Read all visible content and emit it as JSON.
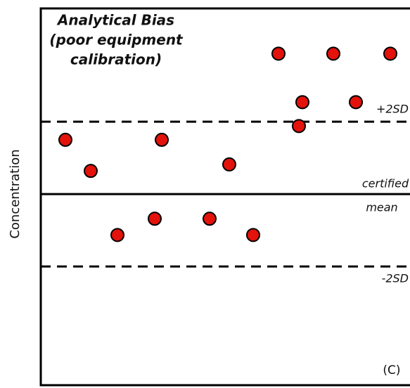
{
  "chart_data": {
    "type": "scatter",
    "title_lines": [
      "Analytical Bias",
      "(poor equipment",
      "calibration)"
    ],
    "y_label": "Concentration",
    "panel_label": "(C)",
    "x": [
      3.5,
      7.1,
      10.9,
      16.2,
      17.2,
      24.0,
      26.8,
      30.2,
      33.8,
      36.7,
      37.2,
      41.6,
      44.8,
      49.7
    ],
    "values": [
      1.5,
      0.64,
      -1.13,
      -0.68,
      1.5,
      -0.68,
      0.82,
      -1.13,
      3.88,
      1.88,
      2.54,
      3.88,
      2.54,
      3.88
    ],
    "color": "#e3120b",
    "xlim": [
      0,
      52.5
    ],
    "ylim": [
      -5.28,
      5.13
    ],
    "reference_lines": [
      {
        "value": 2,
        "label_lines": [
          "+2SD"
        ],
        "style": "dashed"
      },
      {
        "value": 0,
        "label_lines": [
          "certified",
          "mean"
        ],
        "style": "solid"
      },
      {
        "value": -2,
        "label_lines": [
          "-2SD"
        ],
        "style": "dashed"
      }
    ]
  }
}
